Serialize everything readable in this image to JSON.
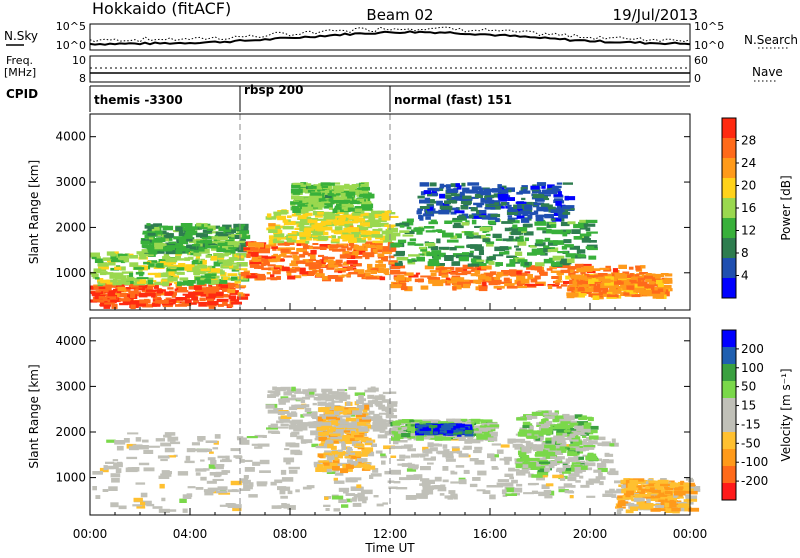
{
  "header": {
    "title_left": "Hokkaido (fitACF)",
    "title_center": "Beam 02",
    "title_right": "19/Jul/2013"
  },
  "top_labels": {
    "nsky": "N.Sky",
    "nsky_top": "10^5",
    "nsky_bottom": "10^0",
    "nsearch": "N.Search",
    "nsearch_top": "10^5",
    "nsearch_bottom": "10^0",
    "freq": "Freq.",
    "freq_unit": "[MHz]",
    "freq_top": "10",
    "freq_bottom": "8",
    "nave": "Nave",
    "nave_top": "60",
    "nave_bottom": "0",
    "cpid": "CPID"
  },
  "cpid_segments": [
    {
      "start_h": 0,
      "end_h": 6,
      "label": "themis -3300"
    },
    {
      "start_h": 6,
      "end_h": 12,
      "label": "rbsp 200"
    },
    {
      "start_h": 12,
      "end_h": 24,
      "label": "normal (fast) 151"
    }
  ],
  "colors": {
    "power_scale": [
      "#0000ff",
      "#1f4fb0",
      "#2e7d4f",
      "#38b03a",
      "#9ad84f",
      "#ffd21a",
      "#ff9a1a",
      "#ff6a1a",
      "#ff2a10"
    ],
    "velocity_scale": [
      "#ff1a1a",
      "#ff6a1a",
      "#ff9a1a",
      "#ffc030",
      "#c0c0b8",
      "#c0c0b8",
      "#7ad84a",
      "#3aa040",
      "#1f5fb0",
      "#0000ff"
    ],
    "ground_scatter": "#c0c0b8"
  },
  "chart_data": [
    {
      "type": "heatmap",
      "name": "power",
      "x_axis": {
        "label": "Time UT",
        "range_h": [
          0,
          24
        ],
        "ticks": [
          "00:00",
          "04:00",
          "08:00",
          "12:00",
          "16:00",
          "20:00",
          "00:00"
        ]
      },
      "y_axis": {
        "label": "Slant Range [km]",
        "range": [
          180,
          4500
        ],
        "ticks": [
          "1000",
          "2000",
          "3000",
          "4000"
        ]
      },
      "colorbar": {
        "label": "Power [dB]",
        "ticks": [
          "28",
          "24",
          "20",
          "16",
          "12",
          "8",
          "4"
        ],
        "range": [
          0,
          32
        ]
      },
      "bands": [
        {
          "t0": 0,
          "t1": 6,
          "r0": 300,
          "r1": 800,
          "value": 28
        },
        {
          "t0": 0,
          "t1": 6,
          "r0": 800,
          "r1": 1500,
          "value": 16
        },
        {
          "t0": 2,
          "t1": 6,
          "r0": 1500,
          "r1": 2100,
          "value": 12
        },
        {
          "t0": 6,
          "t1": 12,
          "r0": 900,
          "r1": 1700,
          "value": 26
        },
        {
          "t0": 7,
          "t1": 12,
          "r0": 1700,
          "r1": 2400,
          "value": 18
        },
        {
          "t0": 8,
          "t1": 11,
          "r0": 2400,
          "r1": 3000,
          "value": 14
        },
        {
          "t0": 12,
          "t1": 22,
          "r0": 700,
          "r1": 1200,
          "value": 26
        },
        {
          "t0": 12,
          "t1": 20,
          "r0": 1200,
          "r1": 2200,
          "value": 12
        },
        {
          "t0": 13,
          "t1": 19,
          "r0": 2200,
          "r1": 3000,
          "value": 6
        },
        {
          "t0": 19,
          "t1": 23,
          "r0": 500,
          "r1": 1000,
          "value": 24
        }
      ]
    },
    {
      "type": "heatmap",
      "name": "velocity",
      "x_axis": {
        "label": "Time UT",
        "range_h": [
          0,
          24
        ],
        "ticks": [
          "00:00",
          "04:00",
          "08:00",
          "12:00",
          "16:00",
          "20:00",
          "00:00"
        ]
      },
      "y_axis": {
        "label": "Slant Range [km]",
        "range": [
          180,
          4500
        ],
        "ticks": [
          "1000",
          "2000",
          "3000",
          "4000"
        ]
      },
      "colorbar": {
        "label": "Velocity [m s⁻¹]",
        "ticks": [
          "200",
          "100",
          "50",
          "15",
          "-15",
          "-50",
          "-100",
          "-200"
        ],
        "range": [
          -250,
          250
        ]
      },
      "bands": [
        {
          "t0": 0,
          "t1": 12,
          "r0": 300,
          "r1": 2000,
          "value": 0
        },
        {
          "t0": 7,
          "t1": 12,
          "r0": 2000,
          "r1": 3000,
          "value": 0
        },
        {
          "t0": 9,
          "t1": 11,
          "r0": 1200,
          "r1": 2600,
          "value": -70
        },
        {
          "t0": 12,
          "t1": 21,
          "r0": 600,
          "r1": 1900,
          "value": 0
        },
        {
          "t0": 12,
          "t1": 16,
          "r0": 1900,
          "r1": 2300,
          "value": 60
        },
        {
          "t0": 13,
          "t1": 15,
          "r0": 2000,
          "r1": 2200,
          "value": 180
        },
        {
          "t0": 17,
          "t1": 20,
          "r0": 1200,
          "r1": 2500,
          "value": 60
        },
        {
          "t0": 21,
          "t1": 24,
          "r0": 300,
          "r1": 1000,
          "value": -80
        }
      ]
    }
  ]
}
